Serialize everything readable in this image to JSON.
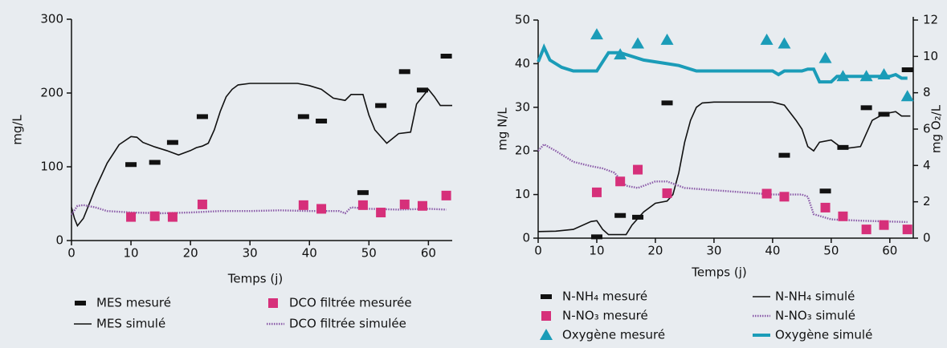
{
  "chart_data": [
    {
      "type": "line",
      "xlabel": "Temps (j)",
      "ylabel": "mg/L",
      "xlim": [
        0,
        64
      ],
      "xticks": [
        0,
        10,
        20,
        30,
        40,
        50,
        60
      ],
      "ylim": [
        0,
        300
      ],
      "yticks": [
        0,
        100,
        200,
        300
      ],
      "legend": "bottom",
      "series": [
        {
          "name": "MES mesuré",
          "color": "#111111",
          "style": "dash",
          "x": [
            10,
            14,
            17,
            22,
            39,
            42,
            49,
            52,
            56,
            59,
            63
          ],
          "values": [
            103,
            106,
            133,
            168,
            168,
            162,
            65,
            183,
            229,
            204,
            250
          ]
        },
        {
          "name": "DCO filtrée mesurée",
          "color": "#d6307a",
          "style": "square",
          "x": [
            10,
            14,
            17,
            22,
            39,
            42,
            49,
            52,
            56,
            59,
            63
          ],
          "values": [
            32,
            33,
            32,
            49,
            48,
            43,
            48,
            38,
            49,
            47,
            61
          ]
        },
        {
          "name": "MES simulé",
          "color": "#111111",
          "style": "line",
          "x": [
            0,
            0.5,
            1,
            2,
            4,
            6,
            8,
            10,
            11,
            12,
            14,
            16,
            18,
            20,
            21,
            22,
            23,
            24,
            25,
            26,
            27,
            28,
            30,
            35,
            38,
            40,
            42,
            44,
            46,
            47,
            49,
            50,
            51,
            53,
            55,
            57,
            58,
            60,
            61,
            62,
            64
          ],
          "values": [
            45,
            30,
            20,
            30,
            70,
            105,
            130,
            141,
            140,
            133,
            127,
            122,
            116,
            122,
            126,
            128,
            132,
            150,
            175,
            195,
            205,
            211,
            213,
            213,
            213,
            210,
            205,
            193,
            190,
            198,
            198,
            170,
            150,
            132,
            145,
            147,
            185,
            205,
            195,
            183,
            183
          ]
        },
        {
          "name": "DCO filtrée simulée",
          "color": "#8a5aa8",
          "style": "dotted",
          "x": [
            0,
            1,
            2,
            4,
            6,
            10,
            15,
            20,
            25,
            30,
            35,
            40,
            45,
            46,
            47,
            50,
            55,
            60,
            63
          ],
          "values": [
            35,
            47,
            48,
            45,
            40,
            38,
            37,
            38,
            40,
            40,
            41,
            40,
            40,
            37,
            45,
            43,
            42,
            43,
            42
          ]
        }
      ]
    },
    {
      "type": "line",
      "xlabel": "Temps (j)",
      "ylabel": "mg N/L",
      "y2label": "mg O₂/L",
      "xlim": [
        0,
        64
      ],
      "xticks": [
        0,
        10,
        20,
        30,
        40,
        50,
        60
      ],
      "ylim": [
        0,
        50
      ],
      "yticks": [
        0,
        10,
        20,
        30,
        40,
        50
      ],
      "y2lim": [
        0,
        12
      ],
      "y2ticks": [
        0,
        2,
        4,
        6,
        8,
        10,
        12
      ],
      "legend": "bottom",
      "series": [
        {
          "name": "N-NH₄ mesuré",
          "color": "#111111",
          "style": "dash",
          "x": [
            10,
            14,
            17,
            22,
            42,
            49,
            52,
            56,
            59,
            63
          ],
          "values": [
            0.3,
            5.2,
            4.8,
            31,
            19,
            10.8,
            20.8,
            29.9,
            28.4,
            38.6
          ]
        },
        {
          "name": "N-NH₄ simulé",
          "color": "#111111",
          "style": "line",
          "x": [
            0,
            3,
            6,
            9,
            10,
            11,
            12,
            15,
            16,
            18,
            20,
            22,
            23,
            24,
            25,
            26,
            27,
            28,
            30,
            40,
            42,
            44,
            45,
            46,
            47,
            48,
            50,
            52,
            55,
            57,
            59,
            61,
            62,
            63.5
          ],
          "values": [
            1.5,
            1.6,
            2,
            3.8,
            4,
            2,
            0.8,
            0.8,
            3,
            6,
            8,
            8.5,
            10,
            15,
            22,
            27,
            30,
            31,
            31.2,
            31.2,
            30.5,
            27,
            25,
            21,
            20,
            22,
            22.5,
            20.5,
            21,
            27,
            28.5,
            29,
            28,
            28
          ]
        },
        {
          "name": "N-NO₃ mesuré",
          "color": "#d6307a",
          "style": "square",
          "x": [
            10,
            14,
            17,
            22,
            39,
            42,
            49,
            52,
            56,
            59,
            63
          ],
          "values": [
            10.5,
            13,
            15.7,
            10.3,
            10.2,
            9.5,
            7,
            5,
            2,
            3,
            2
          ]
        },
        {
          "name": "N-NO₃ simulé",
          "color": "#8a5aa8",
          "style": "dotted",
          "x": [
            0,
            1,
            3,
            6,
            9,
            11,
            13,
            15,
            17,
            20,
            22,
            25,
            30,
            35,
            40,
            45,
            46,
            47,
            50,
            55,
            60,
            63
          ],
          "values": [
            20,
            21.5,
            20,
            17.5,
            16.5,
            16,
            15,
            12,
            11.5,
            13,
            13,
            11.5,
            11,
            10.5,
            10,
            10,
            9.5,
            5.5,
            4.3,
            4,
            3.8,
            3.7
          ]
        },
        {
          "name": "Oxygène mesuré",
          "color": "#1b9cb8",
          "style": "triangle",
          "axis": "y2",
          "x": [
            10,
            14,
            17,
            22,
            39,
            42,
            49,
            52,
            56,
            59,
            63
          ],
          "values": [
            11.2,
            10.1,
            10.7,
            10.9,
            10.9,
            10.7,
            9.9,
            8.9,
            8.9,
            9,
            7.8
          ]
        },
        {
          "name": "Oxygène simulé",
          "color": "#1b9cb8",
          "style": "thick",
          "axis": "y2",
          "x": [
            0,
            1,
            2,
            4,
            6,
            10,
            12,
            14,
            16,
            18,
            22,
            24,
            27,
            35,
            40,
            41,
            42,
            45,
            46,
            47,
            48,
            50,
            51,
            60,
            61,
            62,
            63
          ],
          "values": [
            9.7,
            10.5,
            9.8,
            9.4,
            9.2,
            9.2,
            10.2,
            10.2,
            10,
            9.8,
            9.6,
            9.5,
            9.2,
            9.2,
            9.2,
            9.0,
            9.2,
            9.2,
            9.3,
            9.3,
            8.6,
            8.6,
            8.9,
            8.9,
            9.0,
            8.8,
            8.8
          ]
        }
      ]
    }
  ]
}
